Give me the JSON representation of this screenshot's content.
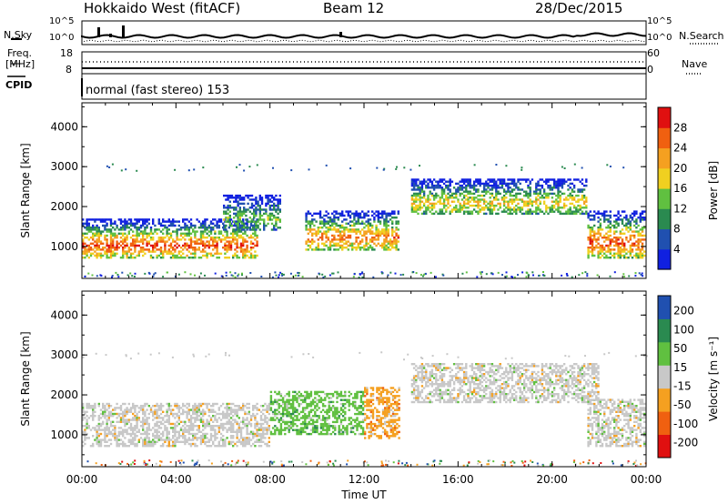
{
  "header": {
    "title": "Hokkaido West (fitACF)",
    "beam": "Beam 12",
    "date": "28/Dec/2015"
  },
  "noise_panel": {
    "left_label": "N.Sky",
    "right_label": "N.Search",
    "left_ticks": [
      "10^5",
      "10^0"
    ],
    "right_ticks": [
      "10^5",
      "10^0"
    ]
  },
  "freq_panel": {
    "left_label": "Freq.",
    "left_unit": "[MHz]",
    "right_label": "Nave",
    "left_ticks": [
      "18",
      "8"
    ],
    "right_ticks": [
      "60",
      "0"
    ]
  },
  "cpid": {
    "label": "CPID",
    "mode_text": "normal (fast stereo) 153"
  },
  "colors": {
    "power_scale": [
      "#1020e0",
      "#2050b0",
      "#2a8a50",
      "#60c040",
      "#f0d020",
      "#f5a020",
      "#f06010",
      "#e01010"
    ],
    "velocity_scale": [
      "#e01010",
      "#f06010",
      "#f5a020",
      "#c8c8c8",
      "#60c040",
      "#2a8a50",
      "#2050b0"
    ]
  },
  "chart_data": [
    {
      "type": "heatmap",
      "name": "power",
      "ylabel": "Slant Range [km]",
      "ylim": [
        200,
        4600
      ],
      "yticks": [
        "1000",
        "2000",
        "3000",
        "4000"
      ],
      "xlim": [
        "00:00",
        "24:00"
      ],
      "colorbar": {
        "label": "Power [dB]",
        "ticks": [
          "4",
          "8",
          "12",
          "16",
          "20",
          "24",
          "28"
        ],
        "range": [
          0,
          32
        ]
      },
      "echo_bands": [
        {
          "start_hour": 0.0,
          "end_hour": 7.5,
          "range_lo_km": 700,
          "range_hi_km": 1700,
          "peak_db": 28
        },
        {
          "start_hour": 6.0,
          "end_hour": 8.5,
          "range_lo_km": 1400,
          "range_hi_km": 2300,
          "peak_db": 14
        },
        {
          "start_hour": 9.5,
          "end_hour": 13.5,
          "range_lo_km": 900,
          "range_hi_km": 1900,
          "peak_db": 26
        },
        {
          "start_hour": 14.0,
          "end_hour": 21.5,
          "range_lo_km": 1800,
          "range_hi_km": 2700,
          "peak_db": 20
        },
        {
          "start_hour": 21.5,
          "end_hour": 24.0,
          "range_lo_km": 700,
          "range_hi_km": 1900,
          "peak_db": 28
        }
      ]
    },
    {
      "type": "heatmap",
      "name": "velocity",
      "ylabel": "Slant Range [km]",
      "xlabel": "Time UT",
      "ylim": [
        200,
        4600
      ],
      "yticks": [
        "1000",
        "2000",
        "3000",
        "4000"
      ],
      "xticks": [
        "00:00",
        "04:00",
        "08:00",
        "12:00",
        "16:00",
        "20:00",
        "00:00"
      ],
      "colorbar": {
        "label": "Velocity [m s⁻¹]",
        "ticks": [
          "200",
          "100",
          "50",
          "15",
          "-15",
          "-50",
          "-100",
          "-200"
        ]
      },
      "echo_bands": [
        {
          "start_hour": 0.0,
          "end_hour": 8.0,
          "range_lo_km": 700,
          "range_hi_km": 1800,
          "dominant_velocity": "-15 to 15"
        },
        {
          "start_hour": 8.0,
          "end_hour": 12.0,
          "range_lo_km": 1000,
          "range_hi_km": 2100,
          "dominant_velocity": "15 to 50"
        },
        {
          "start_hour": 12.0,
          "end_hour": 13.5,
          "range_lo_km": 900,
          "range_hi_km": 2200,
          "dominant_velocity": "-15 to -50"
        },
        {
          "start_hour": 14.0,
          "end_hour": 22.0,
          "range_lo_km": 1800,
          "range_hi_km": 2800,
          "dominant_velocity": "-15 to 15"
        },
        {
          "start_hour": 21.5,
          "end_hour": 24.0,
          "range_lo_km": 700,
          "range_hi_km": 1900,
          "dominant_velocity": "-15 to 15"
        }
      ]
    }
  ]
}
